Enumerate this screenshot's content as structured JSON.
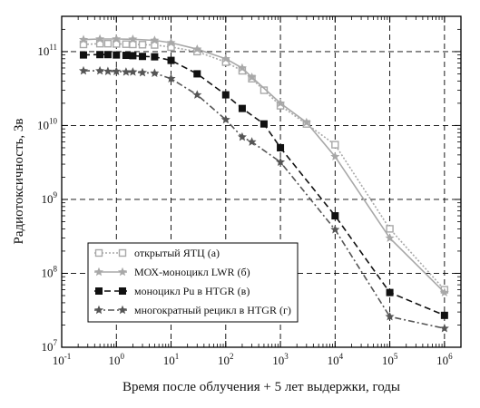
{
  "chart_data": {
    "type": "line",
    "xlabel": "Время после облучения + 5 лет выдержки, годы",
    "ylabel": "Радиотоксичность, Зв",
    "xscale": "log",
    "yscale": "log",
    "xlim": [
      0.1,
      2000000
    ],
    "ylim": [
      10000000,
      300000000000
    ],
    "grid": true,
    "grid_style": "dashed",
    "legend_position": "lower-left",
    "x_ticks": [
      {
        "value": 0.1,
        "base": "10",
        "exp": "-1"
      },
      {
        "value": 1,
        "base": "10",
        "exp": "0"
      },
      {
        "value": 10,
        "base": "10",
        "exp": "1"
      },
      {
        "value": 100,
        "base": "10",
        "exp": "2"
      },
      {
        "value": 1000,
        "base": "10",
        "exp": "3"
      },
      {
        "value": 10000,
        "base": "10",
        "exp": "4"
      },
      {
        "value": 100000,
        "base": "10",
        "exp": "5"
      },
      {
        "value": 1000000,
        "base": "10",
        "exp": "6"
      }
    ],
    "y_ticks": [
      {
        "value": 10000000,
        "base": "10",
        "exp": "7"
      },
      {
        "value": 100000000,
        "base": "10",
        "exp": "8"
      },
      {
        "value": 1000000000,
        "base": "10",
        "exp": "9"
      },
      {
        "value": 10000000000,
        "base": "10",
        "exp": "10"
      },
      {
        "value": 100000000000,
        "base": "10",
        "exp": "11"
      }
    ],
    "series": [
      {
        "name": "открытый ЯТЦ (а)",
        "color": "#a8a8a8",
        "dash": "2,2",
        "marker": "square-open",
        "x": [
          0.25,
          0.5,
          0.7,
          1,
          1.5,
          2,
          3,
          5,
          10,
          30,
          100,
          200,
          300,
          500,
          1000,
          3000,
          10000,
          100000,
          1000000
        ],
        "y": [
          125000000000,
          128000000000,
          128000000000,
          127000000000,
          126000000000,
          125000000000,
          124000000000,
          123000000000,
          115000000000,
          100000000000,
          72000000000,
          55000000000,
          43000000000,
          30000000000,
          18500000000,
          10500000000,
          5500000000,
          400000000,
          60000000
        ]
      },
      {
        "name": "МОХ-моноцикл LWR (б)",
        "color": "#a8a8a8",
        "dash": "none",
        "marker": "star",
        "x": [
          0.25,
          0.5,
          1,
          2,
          5,
          10,
          30,
          100,
          200,
          300,
          1000,
          3000,
          10000,
          100000,
          1000000
        ],
        "y": [
          145000000000,
          148000000000,
          148000000000,
          147000000000,
          142000000000,
          132000000000,
          108000000000,
          80000000000,
          60000000000,
          45000000000,
          20000000000,
          11000000000,
          3800000000,
          300000000,
          55000000
        ]
      },
      {
        "name": "моноцикл Pu в HTGR (в)",
        "color": "#111111",
        "dash": "7,4",
        "marker": "square",
        "x": [
          0.25,
          0.5,
          0.7,
          1,
          1.5,
          2,
          3,
          5,
          10,
          30,
          100,
          200,
          500,
          1000,
          10000,
          100000,
          1000000
        ],
        "y": [
          90000000000,
          91000000000,
          91000000000,
          90000000000,
          89000000000,
          88000000000,
          86000000000,
          85000000000,
          76000000000,
          50000000000,
          26000000000,
          17000000000,
          10500000000,
          5000000000,
          600000000,
          55000000,
          27000000
        ]
      },
      {
        "name": "многократный рецикл в HTGR (г)",
        "color": "#555555",
        "dash": "7,3,2,3",
        "marker": "star",
        "x": [
          0.25,
          0.5,
          0.7,
          1,
          1.5,
          2,
          3,
          5,
          10,
          30,
          100,
          200,
          300,
          1000,
          10000,
          100000,
          1000000
        ],
        "y": [
          55000000000,
          55000000000,
          54000000000,
          54000000000,
          53000000000,
          53000000000,
          52000000000,
          51000000000,
          43000000000,
          26000000000,
          12000000000,
          7000000000,
          6000000000,
          3200000000,
          390000000,
          26000000,
          18000000
        ]
      }
    ]
  }
}
